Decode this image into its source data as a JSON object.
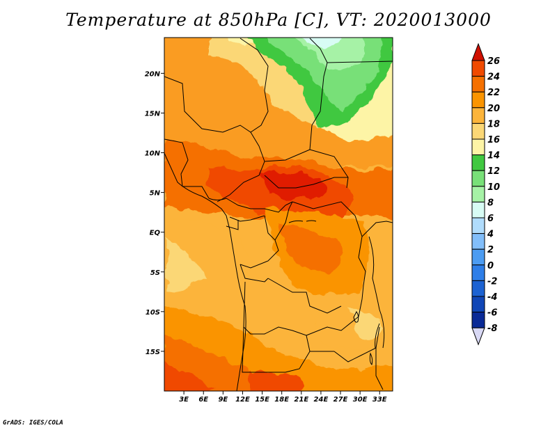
{
  "title": "Temperature at 850hPa [C], VT: 2020013000",
  "footer": "GrADS: IGES/COLA",
  "map": {
    "x_ticks": [
      "3E",
      "6E",
      "9E",
      "12E",
      "15E",
      "18E",
      "21E",
      "24E",
      "27E",
      "30E",
      "33E"
    ],
    "y_ticks": [
      "20N",
      "15N",
      "10N",
      "5N",
      "EQ",
      "5S",
      "10S",
      "15S"
    ],
    "lon_range": [
      0,
      35
    ],
    "lat_range": [
      -20,
      24.5
    ]
  },
  "colorbar": {
    "labels": [
      "26",
      "24",
      "22",
      "20",
      "18",
      "16",
      "14",
      "12",
      "10",
      "8",
      "6",
      "4",
      "2",
      "0",
      "-2",
      "-4",
      "-6",
      "-8"
    ],
    "colors": [
      "#e01b00",
      "#f04a00",
      "#f57000",
      "#fa9400",
      "#fcb43a",
      "#fbd776",
      "#fdf4a6",
      "#40c840",
      "#78e078",
      "#a6f2a6",
      "#d8fcf4",
      "#b0dcfc",
      "#82befa",
      "#4c9cf2",
      "#2e7ee8",
      "#1c62d2",
      "#1046b6",
      "#0a2a96",
      "#05106a"
    ],
    "top_arrow_color": "#d01000",
    "bottom_arrow_color": "#d8d8f4"
  }
}
